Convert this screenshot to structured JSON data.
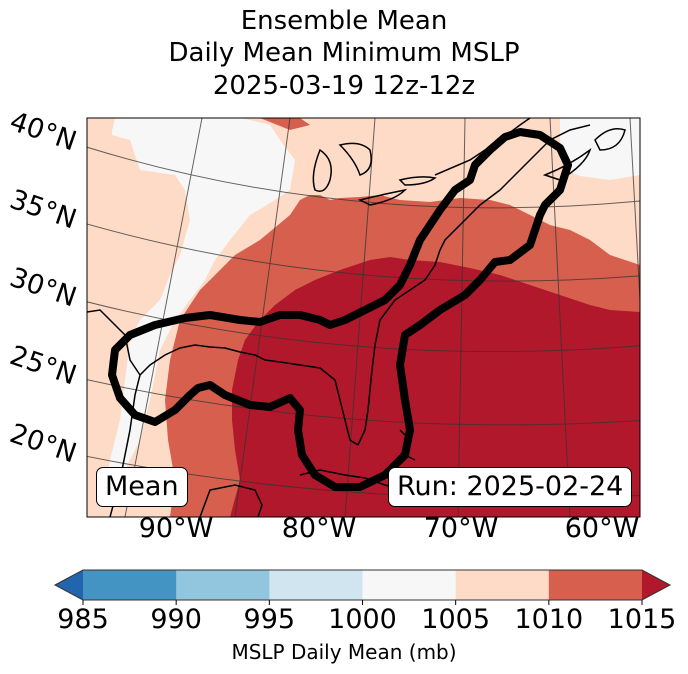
{
  "title": {
    "line1": "Ensemble Mean",
    "line2": "Daily Mean Minimum MSLP",
    "line3": "2025-03-19 12z-12z"
  },
  "chart_data": {
    "type": "map-filled-contour",
    "title": "Ensemble Mean Daily Mean Minimum MSLP 2025-03-19 12z-12z",
    "variable": "MSLP Daily Mean",
    "units": "mb",
    "lat_ticks": [
      "20°N",
      "25°N",
      "30°N",
      "35°N",
      "40°N"
    ],
    "lon_ticks": [
      "90°W",
      "80°W",
      "70°W",
      "60°W"
    ],
    "extent": {
      "lon": [
        -96,
        -58
      ],
      "lat": [
        16,
        42
      ]
    },
    "levels": [
      985,
      990,
      995,
      1000,
      1005,
      1010,
      1015
    ],
    "colors": {
      "under": "#2166ac",
      "985-990": "#4393c3",
      "990-995": "#92c5de",
      "995-1000": "#d1e5f0",
      "1000-1005": "#f7f7f7",
      "1005-1010": "#fddbc7",
      "1010-1015": "#d6604d",
      "over": "#b2182b"
    },
    "regions_present": [
      "1000-1005",
      "1005-1010",
      "1010-1015",
      "over"
    ],
    "outline_contour": "black thick contour tracing high-pressure ridge from Gulf of Mexico to Atlantic Canada",
    "grid": true
  },
  "annotations": {
    "left": "Mean",
    "right": "Run: 2025-02-24"
  },
  "colorbar": {
    "ticks": [
      "985",
      "990",
      "995",
      "1000",
      "1005",
      "1010",
      "1015"
    ],
    "label": "MSLP Daily Mean (mb)",
    "extend": "both"
  }
}
